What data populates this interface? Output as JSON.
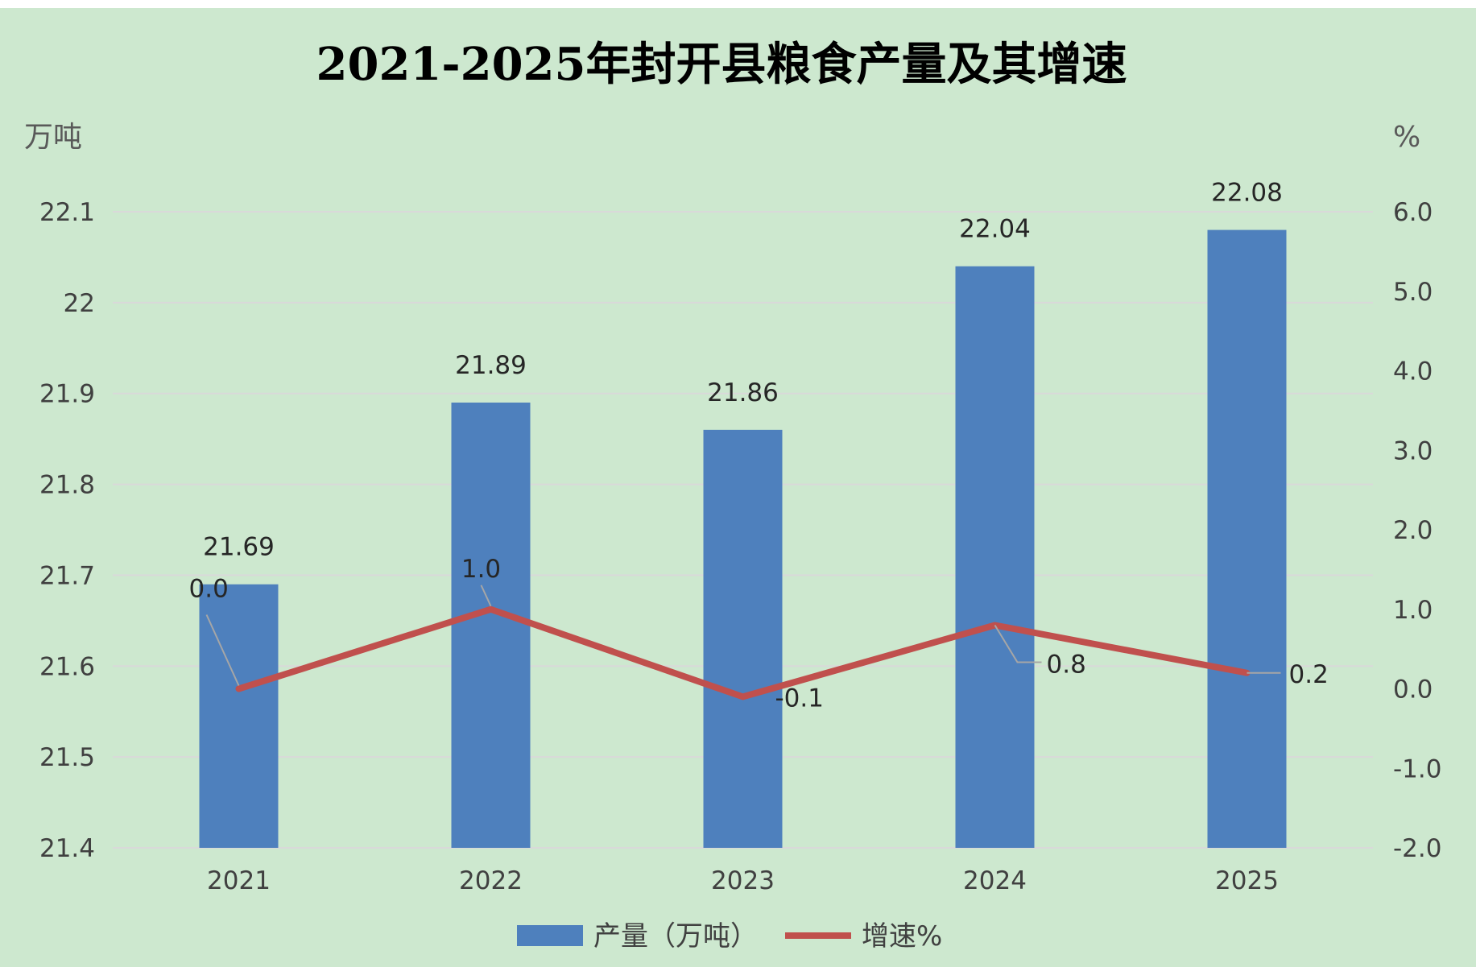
{
  "colors": {
    "background": "#cde8cf",
    "bar": "#4e80bd",
    "line": "#c0504d",
    "gridline": "#d9d9d9",
    "leader": "#a6a6a6"
  },
  "chart_data": {
    "type": "bar",
    "title": "2021-2025年封开县粮食产量及其增速",
    "categories": [
      "2021",
      "2022",
      "2023",
      "2024",
      "2025"
    ],
    "y_left": {
      "label": "万吨",
      "ylim": [
        21.4,
        22.1
      ],
      "ticks": [
        "21.4",
        "21.5",
        "21.6",
        "21.7",
        "21.8",
        "21.9",
        "22",
        "22.1"
      ]
    },
    "y_right": {
      "label": "%",
      "ylim": [
        -2.0,
        6.0
      ],
      "ticks": [
        "-2.0",
        "-1.0",
        "0.0",
        "1.0",
        "2.0",
        "3.0",
        "4.0",
        "5.0",
        "6.0"
      ]
    },
    "series": [
      {
        "name": "产量（万吨）",
        "type": "bar",
        "axis": "left",
        "values": [
          21.69,
          21.89,
          21.86,
          22.04,
          22.08
        ],
        "labels": [
          "21.69",
          "21.89",
          "21.86",
          "22.04",
          "22.08"
        ]
      },
      {
        "name": "增速%",
        "type": "line",
        "axis": "right",
        "values": [
          0.0,
          1.0,
          -0.1,
          0.8,
          0.2
        ],
        "labels": [
          "0.0",
          "1.0",
          "-0.1",
          "0.8",
          "0.2"
        ]
      }
    ],
    "grid": true,
    "legend_position": "bottom"
  }
}
